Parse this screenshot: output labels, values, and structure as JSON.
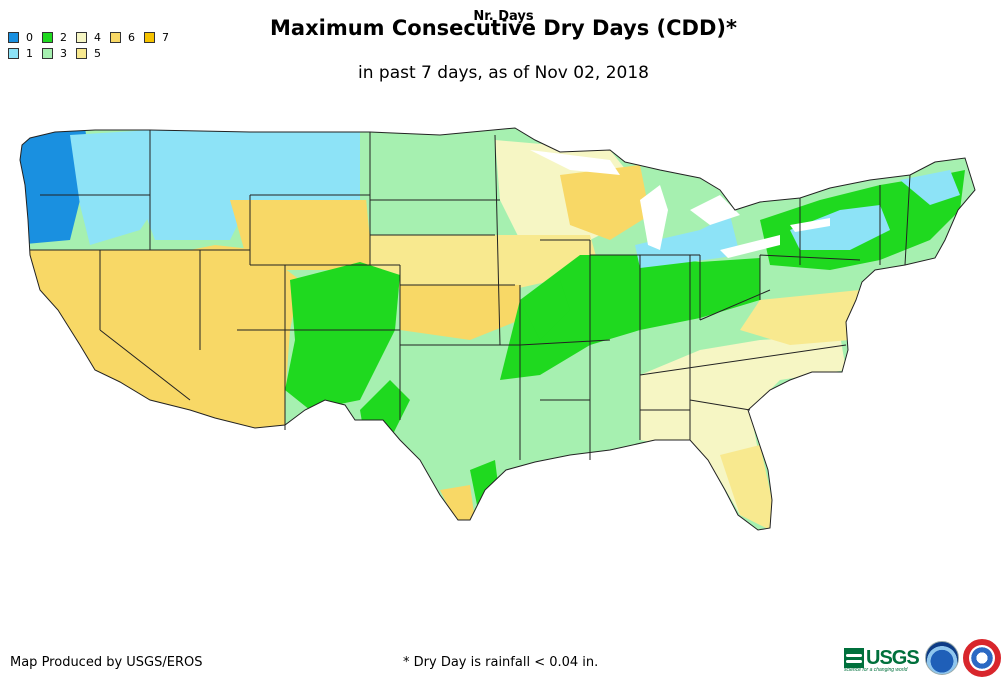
{
  "title": "Maximum Consecutive Dry Days (CDD)*",
  "subtitle": "in past 7 days, as of Nov 02, 2018",
  "legend": {
    "title": "Nr. Days",
    "items": [
      {
        "label": "0",
        "color": "#1a90e0"
      },
      {
        "label": "1",
        "color": "#8de3f7"
      },
      {
        "label": "2",
        "color": "#1fd91f"
      },
      {
        "label": "3",
        "color": "#a6f0b0"
      },
      {
        "label": "4",
        "color": "#f6f6c4"
      },
      {
        "label": "5",
        "color": "#f8e98f"
      },
      {
        "label": "6",
        "color": "#f8d866"
      },
      {
        "label": "7",
        "color": "#f5c200"
      }
    ]
  },
  "credit": "Map Produced by USGS/EROS",
  "footnote": "* Dry Day is rainfall < 0.04 in.",
  "logos": {
    "usgs_text": "USGS",
    "usgs_tagline": "science for a changing world"
  },
  "icons": [
    "usgs-logo-icon",
    "noaa-logo-icon",
    "nws-logo-icon"
  ]
}
